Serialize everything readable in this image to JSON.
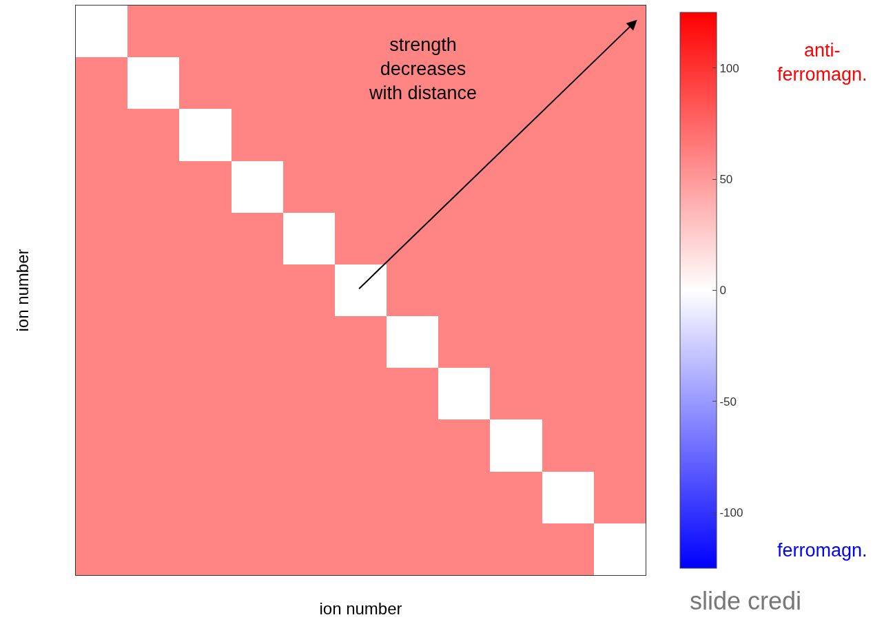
{
  "chart_data": {
    "type": "heatmap",
    "categories": [
      null,
      null,
      null,
      null,
      null,
      null,
      null,
      null,
      null,
      null,
      null
    ],
    "y_categories": [
      null,
      null,
      null,
      null,
      null,
      null,
      null,
      null,
      null,
      null,
      null
    ],
    "cells": [
      [
        0,
        60,
        60,
        60,
        60,
        60,
        60,
        60,
        60,
        60,
        60
      ],
      [
        60,
        0,
        60,
        60,
        60,
        60,
        60,
        60,
        60,
        60,
        60
      ],
      [
        60,
        60,
        0,
        60,
        60,
        60,
        60,
        60,
        60,
        60,
        60
      ],
      [
        60,
        60,
        60,
        0,
        60,
        60,
        60,
        60,
        60,
        60,
        60
      ],
      [
        60,
        60,
        60,
        60,
        0,
        60,
        60,
        60,
        60,
        60,
        60
      ],
      [
        60,
        60,
        60,
        60,
        60,
        0,
        60,
        60,
        60,
        60,
        60
      ],
      [
        60,
        60,
        60,
        60,
        60,
        60,
        0,
        60,
        60,
        60,
        60
      ],
      [
        60,
        60,
        60,
        60,
        60,
        60,
        60,
        0,
        60,
        60,
        60
      ],
      [
        60,
        60,
        60,
        60,
        60,
        60,
        60,
        60,
        0,
        60,
        60
      ],
      [
        60,
        60,
        60,
        60,
        60,
        60,
        60,
        60,
        60,
        0,
        60
      ],
      [
        60,
        60,
        60,
        60,
        60,
        60,
        60,
        60,
        60,
        60,
        0
      ]
    ],
    "clim": [
      -125,
      125
    ],
    "cticks": [
      -100,
      -50,
      0,
      50,
      100
    ],
    "xlabel": "ion number",
    "ylabel": "ion number",
    "tick_labels": false,
    "annotations": [
      "strength\ndecreases\nwith distance",
      "anti-\nferromagn.",
      "ferromagn.",
      "slide credi"
    ]
  }
}
